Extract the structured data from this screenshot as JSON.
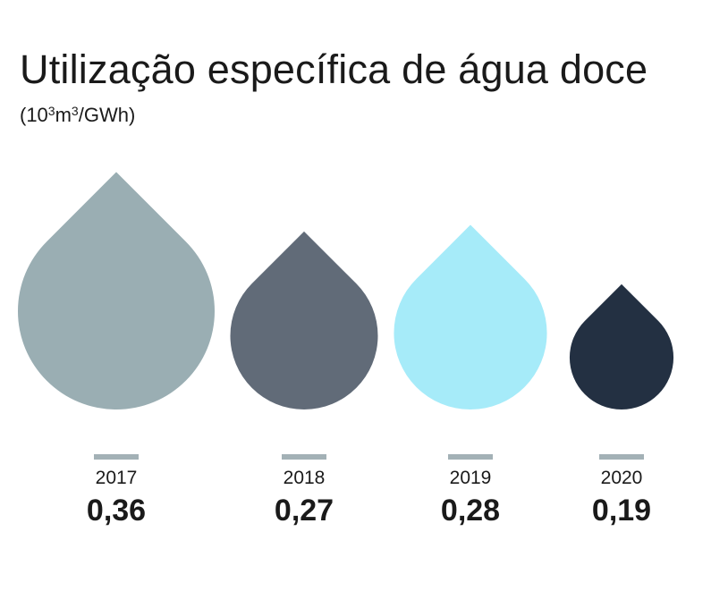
{
  "header": {
    "title": "Utilização específica de água doce",
    "subtitle_prefix": "(10",
    "subtitle_sup1": "3",
    "subtitle_mid": "m",
    "subtitle_sup2": "3",
    "subtitle_suffix": "/GWh)"
  },
  "chart_data": {
    "type": "bar",
    "title": "Utilização específica de água doce",
    "subtitle": "(10³m³/GWh)",
    "categories": [
      "2017",
      "2018",
      "2019",
      "2020"
    ],
    "values": [
      0.36,
      0.27,
      0.28,
      0.19
    ],
    "value_labels": [
      "0,36",
      "0,27",
      "0,28",
      "0,19"
    ],
    "colors": [
      "#9aaeb3",
      "#616b78",
      "#a6ebf9",
      "#233042"
    ],
    "marker_color": "#a3b1b6"
  }
}
